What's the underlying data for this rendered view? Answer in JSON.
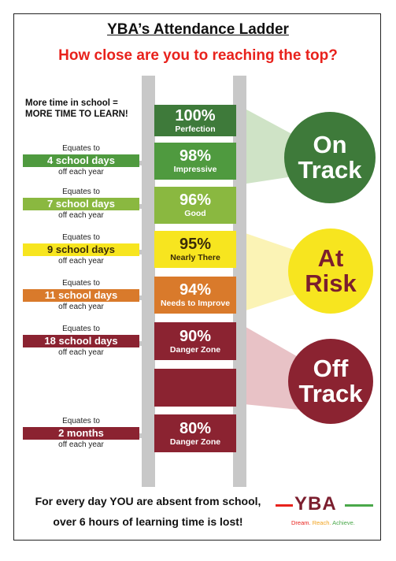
{
  "header": {
    "title": "YBA’s Attendance Ladder",
    "subtitle": "How close are you to reaching the top?"
  },
  "intro": {
    "line1": "More time in school =",
    "line2": "MORE TIME TO LEARN!"
  },
  "steps": [
    {
      "pct": "100%",
      "label": "Perfection",
      "color": "#3e7a3a"
    },
    {
      "pct": "98%",
      "label": "Impressive",
      "color": "#4f9a3f"
    },
    {
      "pct": "96%",
      "label": "Good",
      "color": "#8ab840"
    },
    {
      "pct": "95%",
      "label": "Nearly There",
      "color": "#f7e51f"
    },
    {
      "pct": "94%",
      "label": "Needs to Improve",
      "color": "#d97a2b"
    },
    {
      "pct": "90%",
      "label": "Danger Zone",
      "color": "#8b2331"
    },
    {
      "pct": "",
      "label": "",
      "color": "#8b2331"
    },
    {
      "pct": "80%",
      "label": "Danger Zone",
      "color": "#8b2331"
    }
  ],
  "equates": [
    {
      "top": "Equates to",
      "days": "4 school days",
      "bottom": "off each year",
      "color": "#4f9a3f"
    },
    {
      "top": "Equates to",
      "days": "7 school days",
      "bottom": "off each year",
      "color": "#8ab840"
    },
    {
      "top": "Equates to",
      "days": "9 school days",
      "bottom": "off each year",
      "color": "#f7e51f"
    },
    {
      "top": "Equates to",
      "days": "11 school days",
      "bottom": "off each year",
      "color": "#d97a2b"
    },
    {
      "top": "Equates to",
      "days": "18 school days",
      "bottom": "off each year",
      "color": "#8b2331"
    },
    {
      "top": "Equates to",
      "days": "2 months",
      "bottom": "off each year",
      "color": "#8b2331"
    }
  ],
  "status": {
    "on": {
      "line1": "On",
      "line2": "Track",
      "color": "#3e7a3a",
      "beam": "#cfe3c6"
    },
    "risk": {
      "line1": "At",
      "line2": "Risk",
      "color": "#f7e51f",
      "beam": "#fbf3b5"
    },
    "off": {
      "line1": "Off",
      "line2": "Track",
      "color": "#8b2331",
      "beam": "#e8c2c6"
    }
  },
  "footer": {
    "line1": "For every day YOU are absent from school,",
    "line2": "over 6 hours of learning time is lost!"
  },
  "logo": {
    "text": "YBA",
    "tag_dream": "Dream.",
    "tag_reach": "Reach.",
    "tag_achieve": "Achieve.",
    "color_dream": "#e8221c",
    "color_reach": "#f1a21c",
    "color_achieve": "#4aa84a"
  }
}
